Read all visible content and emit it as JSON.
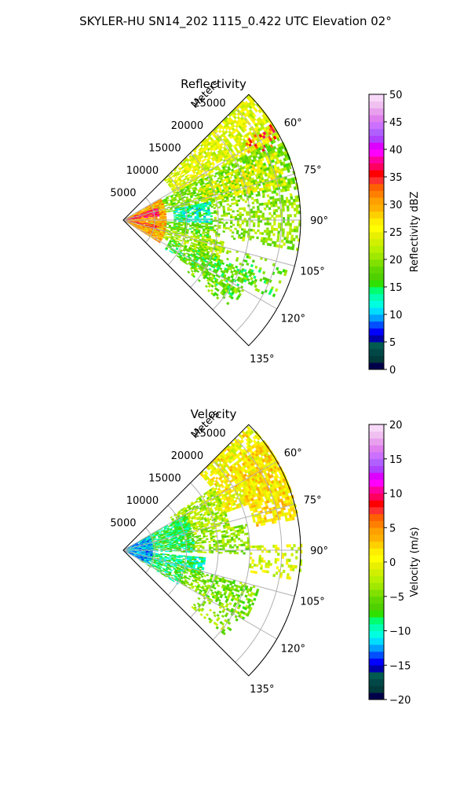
{
  "figure": {
    "title": "SKYLER-HU  SN14_202  1115_0.422 UTC Elevation 02°"
  },
  "chart_data": [
    {
      "type": "heatmap",
      "title": "Reflectivity",
      "rlabel": "Meters",
      "r_ticks": [
        5000,
        10000,
        15000,
        20000,
        25000
      ],
      "r_tick_labels": [
        "5000",
        "10000",
        "15000",
        "20000",
        "25000"
      ],
      "theta_ticks": [
        60,
        75,
        90,
        105,
        120,
        135
      ],
      "theta_tick_labels": [
        "60°",
        "75°",
        "90°",
        "105°",
        "120°",
        "135°"
      ],
      "theta_range": [
        45,
        135
      ],
      "r_range": [
        0,
        28000
      ],
      "grid": true,
      "colorbar": {
        "label": "Reflectivity dBZ",
        "range": [
          0,
          50
        ],
        "ticks": [
          0,
          5,
          10,
          15,
          20,
          25,
          30,
          35,
          40,
          45,
          50
        ],
        "tick_labels": [
          "0",
          "5",
          "10",
          "15",
          "20",
          "25",
          "30",
          "35",
          "40",
          "45",
          "50"
        ],
        "colors": [
          "#00004a",
          "#003a3a",
          "#004848",
          "#005a50",
          "#0000aa",
          "#0000ff",
          "#0050ff",
          "#00a0ff",
          "#00ddff",
          "#00ffe0",
          "#00ffb0",
          "#00ff70",
          "#30e000",
          "#50d000",
          "#60d800",
          "#80e000",
          "#a0e800",
          "#b8f000",
          "#d0f000",
          "#e8f000",
          "#ffff00",
          "#ffee00",
          "#ffd000",
          "#ffb000",
          "#ffa000",
          "#ff8000",
          "#ff6000",
          "#ff3030",
          "#ff0000",
          "#ff0060",
          "#ff00a0",
          "#ff00ff",
          "#dd00ff",
          "#b040ff",
          "#b060ff",
          "#cc70ff",
          "#e080ee",
          "#e8a0ee",
          "#f0c0f0",
          "#f8d8f8"
        ]
      },
      "regions": [
        {
          "theta": [
            45,
            62
          ],
          "r": [
            9000,
            28000
          ],
          "value": 24,
          "density": 0.72
        },
        {
          "theta": [
            57,
            64
          ],
          "r": [
            22000,
            27500
          ],
          "value": 34,
          "density": 0.35
        },
        {
          "theta": [
            62,
            80
          ],
          "r": [
            4000,
            28000
          ],
          "value": 19,
          "density": 0.68
        },
        {
          "theta": [
            66,
            78
          ],
          "r": [
            13000,
            26000
          ],
          "value": 25,
          "density": 0.45
        },
        {
          "theta": [
            78,
            92
          ],
          "r": [
            8000,
            14000
          ],
          "value": 13,
          "density": 0.75
        },
        {
          "theta": [
            80,
            100
          ],
          "r": [
            14000,
            28000
          ],
          "value": 20,
          "density": 0.42
        },
        {
          "theta": [
            92,
            102
          ],
          "r": [
            4000,
            14000
          ],
          "value": 18,
          "density": 0.7
        },
        {
          "theta": [
            102,
            115
          ],
          "r": [
            3000,
            16000
          ],
          "value": 21,
          "density": 0.7
        },
        {
          "theta": [
            105,
            118
          ],
          "r": [
            12000,
            27000
          ],
          "value": 18,
          "density": 0.25
        },
        {
          "theta": [
            112,
            125
          ],
          "r": [
            8000,
            22000
          ],
          "value": 17,
          "density": 0.55
        },
        {
          "theta": [
            120,
            130
          ],
          "r": [
            13000,
            21000
          ],
          "value": 19,
          "density": 0.3
        },
        {
          "theta": [
            60,
            122
          ],
          "r": [
            0,
            6500
          ],
          "value": 30,
          "density": 0.88
        },
        {
          "theta": [
            70,
            84
          ],
          "r": [
            0,
            5500
          ],
          "value": 36,
          "density": 0.75
        },
        {
          "theta": [
            98,
            106
          ],
          "r": [
            0,
            5500
          ],
          "value": 35,
          "density": 0.6
        }
      ]
    },
    {
      "type": "heatmap",
      "title": "Velocity",
      "rlabel": "Meters",
      "r_ticks": [
        5000,
        10000,
        15000,
        20000,
        25000
      ],
      "r_tick_labels": [
        "5000",
        "10000",
        "15000",
        "20000",
        "25000"
      ],
      "theta_ticks": [
        60,
        75,
        90,
        105,
        120,
        135
      ],
      "theta_tick_labels": [
        "60°",
        "75°",
        "90°",
        "105°",
        "120°",
        "135°"
      ],
      "theta_range": [
        45,
        135
      ],
      "r_range": [
        0,
        28000
      ],
      "grid": true,
      "colorbar": {
        "label": "Velocity (m/s)",
        "range": [
          -20,
          20
        ],
        "ticks": [
          -20,
          -15,
          -10,
          -5,
          0,
          5,
          10,
          15,
          20
        ],
        "tick_labels": [
          "−20",
          "−15",
          "−10",
          "−5",
          "0",
          "5",
          "10",
          "15",
          "20"
        ],
        "colors": [
          "#00004a",
          "#003a3a",
          "#004848",
          "#005a50",
          "#0000aa",
          "#0000ff",
          "#0050ff",
          "#00a0ff",
          "#00ddff",
          "#00ffe0",
          "#00ffb0",
          "#00ff70",
          "#30e000",
          "#50d000",
          "#60d800",
          "#80e000",
          "#a0e800",
          "#b8f000",
          "#d0f000",
          "#e8f000",
          "#ffff00",
          "#ffee00",
          "#ffd000",
          "#ffb000",
          "#ffa000",
          "#ff8000",
          "#ff6000",
          "#ff3030",
          "#ff0000",
          "#ff0060",
          "#ff00a0",
          "#ff00ff",
          "#dd00ff",
          "#b040ff",
          "#b060ff",
          "#cc70ff",
          "#e080ee",
          "#e8a0ee",
          "#f0c0f0",
          "#f8d8f8"
        ]
      },
      "regions": [
        {
          "theta": [
            45,
            70
          ],
          "r": [
            17000,
            28000
          ],
          "value": 0.5,
          "density": 0.72
        },
        {
          "theta": [
            52,
            80
          ],
          "r": [
            21000,
            28000
          ],
          "value": 1.5,
          "density": 0.7
        },
        {
          "theta": [
            55,
            78
          ],
          "r": [
            9000,
            17000
          ],
          "value": -3,
          "density": 0.7
        },
        {
          "theta": [
            60,
            92
          ],
          "r": [
            3000,
            11000
          ],
          "value": -8,
          "density": 0.8
        },
        {
          "theta": [
            78,
            92
          ],
          "r": [
            11000,
            20000
          ],
          "value": -4,
          "density": 0.5
        },
        {
          "theta": [
            88,
            100
          ],
          "r": [
            20000,
            28000
          ],
          "value": -1,
          "density": 0.3
        },
        {
          "theta": [
            95,
            108
          ],
          "r": [
            3000,
            13000
          ],
          "value": -9,
          "density": 0.75
        },
        {
          "theta": [
            105,
            120
          ],
          "r": [
            9000,
            22000
          ],
          "value": -5,
          "density": 0.55
        },
        {
          "theta": [
            108,
            122
          ],
          "r": [
            3000,
            10000
          ],
          "value": -8,
          "density": 0.6
        },
        {
          "theta": [
            118,
            130
          ],
          "r": [
            14000,
            21000
          ],
          "value": -4,
          "density": 0.3
        },
        {
          "theta": [
            62,
            118
          ],
          "r": [
            0,
            4500
          ],
          "value": -12,
          "density": 0.88
        }
      ]
    }
  ]
}
